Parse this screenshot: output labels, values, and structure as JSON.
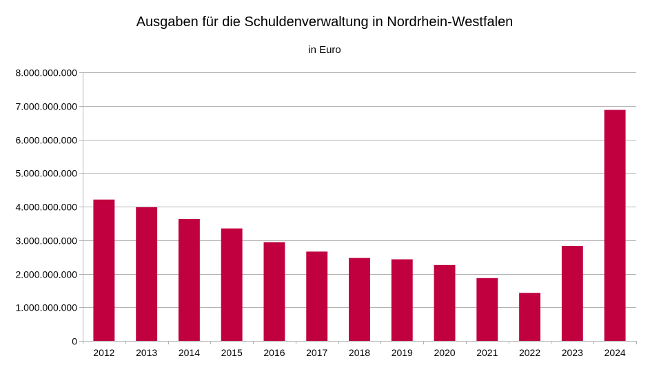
{
  "chart_data": {
    "type": "bar",
    "title": "Ausgaben für die Schuldenverwaltung in Nordrhein-Westfalen",
    "subtitle": "in Euro",
    "xlabel": "",
    "ylabel": "",
    "categories": [
      "2012",
      "2013",
      "2014",
      "2015",
      "2016",
      "2017",
      "2018",
      "2019",
      "2020",
      "2021",
      "2022",
      "2023",
      "2024"
    ],
    "values": [
      4210000000,
      3980000000,
      3630000000,
      3350000000,
      2940000000,
      2660000000,
      2470000000,
      2430000000,
      2260000000,
      1870000000,
      1430000000,
      2830000000,
      6880000000
    ],
    "ylim": [
      0,
      8000000000
    ],
    "yticks": [
      0,
      1000000000,
      2000000000,
      3000000000,
      4000000000,
      5000000000,
      6000000000,
      7000000000,
      8000000000
    ],
    "ytick_labels": [
      "0",
      "1.000.000.000",
      "2.000.000.000",
      "3.000.000.000",
      "4.000.000.000",
      "5.000.000.000",
      "6.000.000.000",
      "7.000.000.000",
      "8.000.000.000"
    ],
    "grid": true,
    "legend": "none",
    "colors": {
      "bar": "#C0003F",
      "grid": "#B3B3B3",
      "axis": "#B3B3B3"
    }
  }
}
